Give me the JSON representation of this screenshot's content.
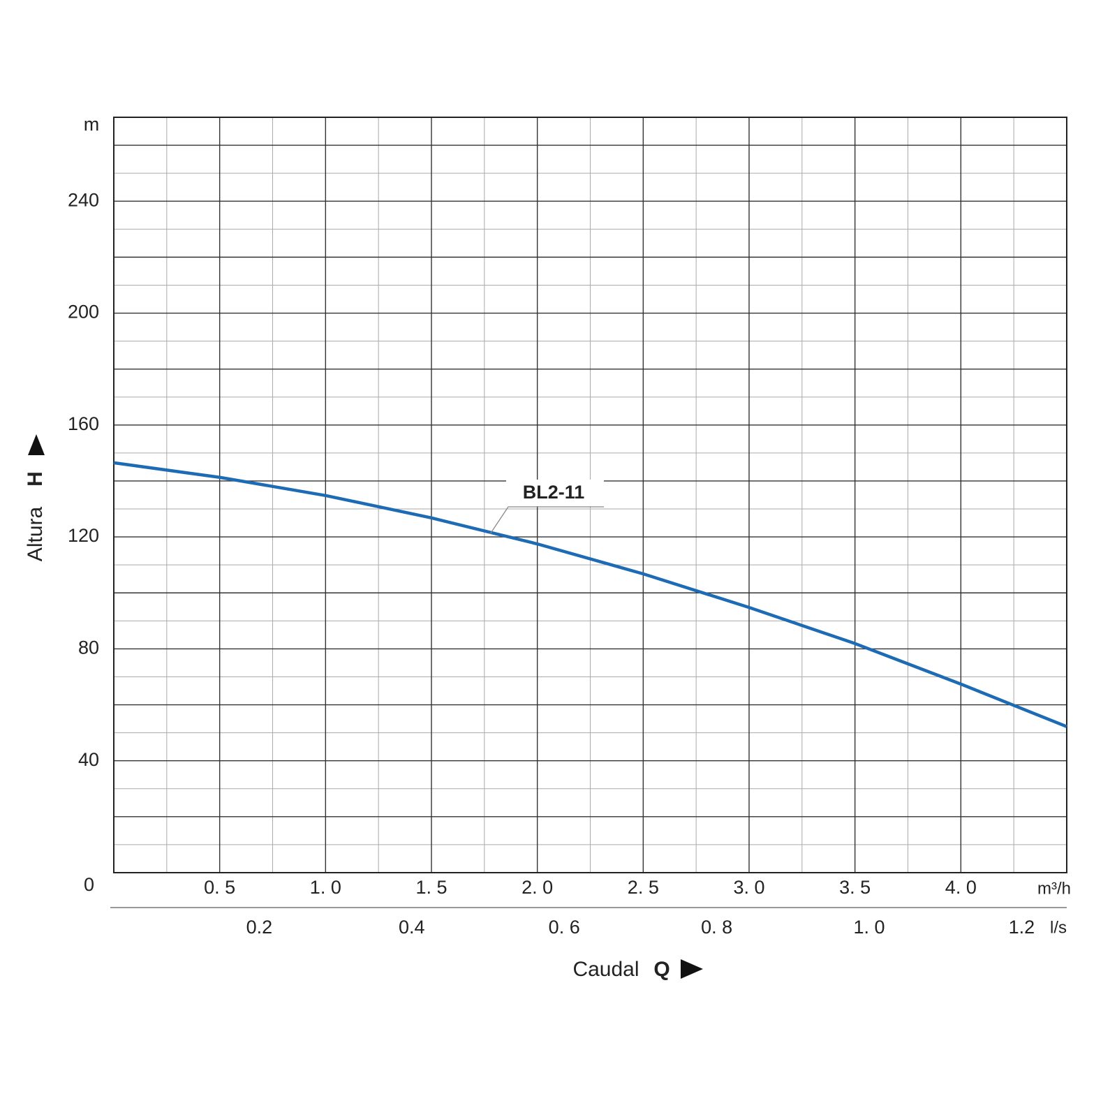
{
  "chart_data": {
    "type": "line",
    "y_label": "Altura",
    "y_symbol": "H",
    "y_unit": "m",
    "x_label": "Caudal",
    "x_symbol": "Q",
    "x_unit": "m³/h",
    "x2_unit": "l/s",
    "annotations": [
      "BL2-11"
    ],
    "x": [
      0,
      0.5,
      1.0,
      1.5,
      2.0,
      2.5,
      3.0,
      3.5,
      4.0,
      4.5
    ],
    "series": [
      {
        "name": "BL2-11",
        "color": "#1c6bb4",
        "values": [
          146.5,
          141.3,
          134.8,
          126.8,
          117.5,
          106.8,
          94.8,
          81.9,
          67.4,
          52.2
        ]
      }
    ],
    "xlim": [
      0,
      4.5
    ],
    "xticks": [
      {
        "value": 0.5,
        "label": "0. 5"
      },
      {
        "value": 1.0,
        "label": "1. 0"
      },
      {
        "value": 1.5,
        "label": "1. 5"
      },
      {
        "value": 2.0,
        "label": "2. 0"
      },
      {
        "value": 2.5,
        "label": "2. 5"
      },
      {
        "value": 3.0,
        "label": "3. 0"
      },
      {
        "value": 3.5,
        "label": "3. 5"
      },
      {
        "value": 4.0,
        "label": "4. 0"
      }
    ],
    "x2lim": [
      0,
      1.25
    ],
    "x2ticks": [
      0.2,
      0.4,
      {
        "value": 0.6,
        "label": "0. 6"
      },
      {
        "value": 0.8,
        "label": "0. 8"
      },
      {
        "value": 1.0,
        "label": "1. 0"
      },
      1.2
    ],
    "ylim": [
      0,
      270
    ],
    "yticks": [
      0,
      40,
      80,
      120,
      160,
      200,
      240
    ],
    "xgrid_major": [
      0.5,
      1.0,
      1.5,
      2.0,
      2.5,
      3.0,
      3.5,
      4.0
    ],
    "xgrid_minor": [
      0.25,
      0.75,
      1.25,
      1.75,
      2.25,
      2.75,
      3.25,
      3.75,
      4.25
    ],
    "ygrid_major": [
      20,
      40,
      60,
      80,
      100,
      120,
      140,
      160,
      180,
      200,
      220,
      240,
      260
    ],
    "ygrid_minor": [
      10,
      30,
      50,
      70,
      90,
      110,
      130,
      150,
      170,
      190,
      210,
      230,
      250
    ],
    "grid": true
  }
}
